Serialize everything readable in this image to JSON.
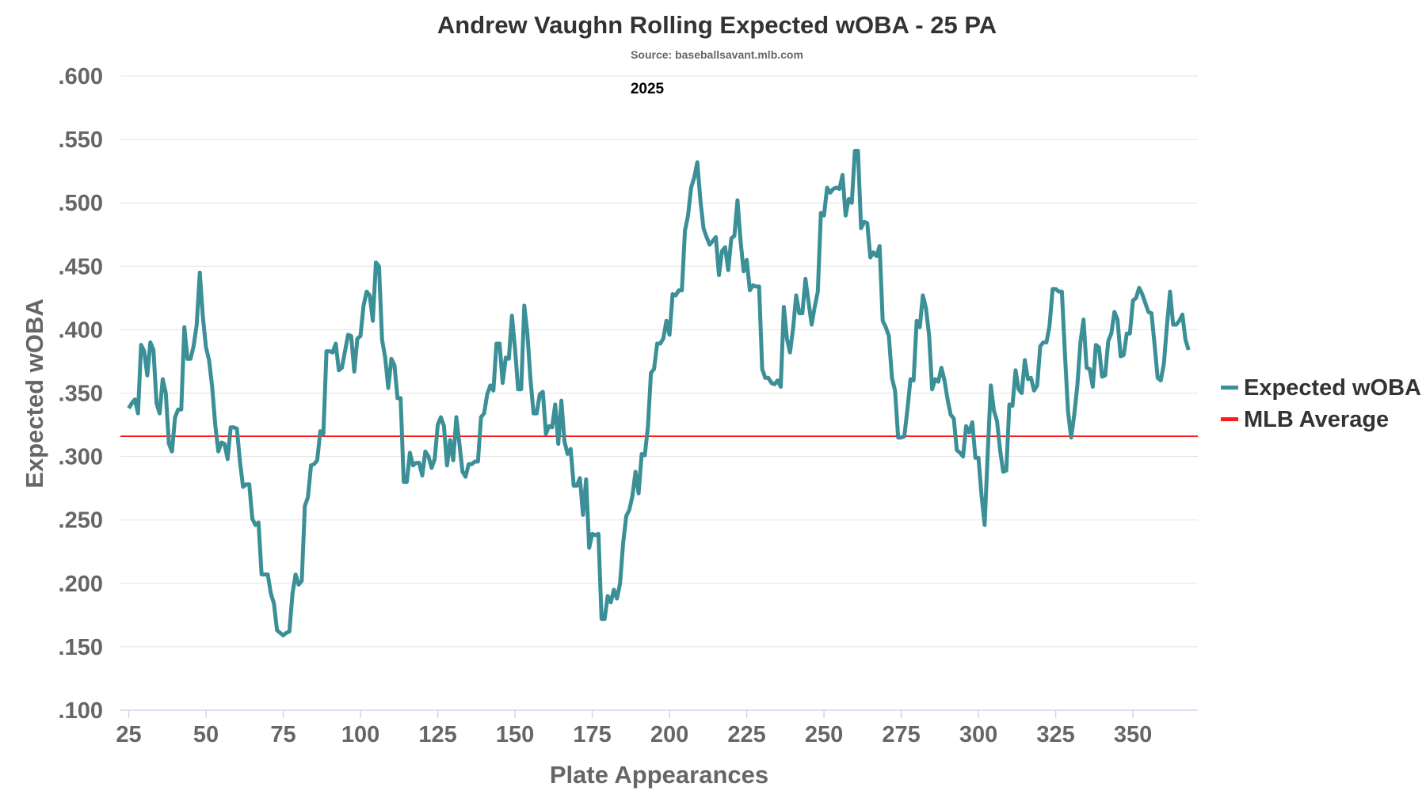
{
  "chart_data": {
    "type": "line",
    "title": "Andrew Vaughn Rolling Expected wOBA - 25 PA",
    "subtitle": "Source: baseballsavant.mlb.com",
    "annotation": "2025",
    "xlabel": "Plate Appearances",
    "ylabel": "Expected wOBA",
    "xlim": [
      22.3,
      371
    ],
    "ylim": [
      0.1,
      0.6
    ],
    "x_ticks": [
      "25",
      "50",
      "75",
      "100",
      "125",
      "150",
      "175",
      "200",
      "225",
      "250",
      "275",
      "300",
      "325",
      "350"
    ],
    "y_ticks": [
      ".100",
      ".150",
      ".200",
      ".250",
      ".300",
      ".350",
      ".400",
      ".450",
      ".500",
      ".550",
      ".600"
    ],
    "grid": true,
    "legend_position": "right",
    "colors": {
      "series": "#3b8f97",
      "average": "#ff1a1a"
    },
    "series": [
      {
        "name": "Expected wOBA",
        "x_start": 25,
        "values": [
          0.338,
          0.342,
          0.345,
          0.334,
          0.388,
          0.383,
          0.364,
          0.39,
          0.384,
          0.342,
          0.334,
          0.361,
          0.35,
          0.31,
          0.304,
          0.331,
          0.337,
          0.337,
          0.402,
          0.377,
          0.377,
          0.387,
          0.404,
          0.445,
          0.41,
          0.386,
          0.376,
          0.355,
          0.325,
          0.304,
          0.311,
          0.31,
          0.298,
          0.323,
          0.323,
          0.322,
          0.296,
          0.276,
          0.278,
          0.278,
          0.251,
          0.246,
          0.248,
          0.207,
          0.207,
          0.207,
          0.192,
          0.184,
          0.163,
          0.161,
          0.159,
          0.161,
          0.162,
          0.192,
          0.207,
          0.199,
          0.202,
          0.261,
          0.268,
          0.293,
          0.294,
          0.297,
          0.32,
          0.318,
          0.383,
          0.383,
          0.382,
          0.389,
          0.368,
          0.37,
          0.383,
          0.396,
          0.395,
          0.367,
          0.393,
          0.395,
          0.419,
          0.43,
          0.427,
          0.407,
          0.453,
          0.45,
          0.392,
          0.378,
          0.354,
          0.377,
          0.372,
          0.346,
          0.346,
          0.28,
          0.28,
          0.303,
          0.293,
          0.295,
          0.295,
          0.285,
          0.304,
          0.3,
          0.291,
          0.298,
          0.325,
          0.331,
          0.324,
          0.293,
          0.313,
          0.297,
          0.331,
          0.31,
          0.288,
          0.284,
          0.294,
          0.294,
          0.296,
          0.296,
          0.331,
          0.334,
          0.349,
          0.356,
          0.352,
          0.389,
          0.389,
          0.358,
          0.378,
          0.377,
          0.411,
          0.385,
          0.353,
          0.353,
          0.419,
          0.397,
          0.361,
          0.334,
          0.334,
          0.349,
          0.351,
          0.318,
          0.324,
          0.323,
          0.341,
          0.31,
          0.344,
          0.312,
          0.302,
          0.306,
          0.277,
          0.277,
          0.283,
          0.254,
          0.282,
          0.228,
          0.239,
          0.238,
          0.239,
          0.172,
          0.172,
          0.19,
          0.185,
          0.195,
          0.188,
          0.2,
          0.232,
          0.253,
          0.258,
          0.269,
          0.288,
          0.271,
          0.302,
          0.301,
          0.323,
          0.366,
          0.369,
          0.389,
          0.389,
          0.393,
          0.407,
          0.396,
          0.428,
          0.427,
          0.431,
          0.431,
          0.478,
          0.49,
          0.512,
          0.52,
          0.532,
          0.502,
          0.48,
          0.473,
          0.467,
          0.47,
          0.473,
          0.443,
          0.462,
          0.465,
          0.447,
          0.472,
          0.474,
          0.502,
          0.47,
          0.446,
          0.455,
          0.431,
          0.435,
          0.434,
          0.434,
          0.369,
          0.362,
          0.362,
          0.358,
          0.357,
          0.36,
          0.355,
          0.418,
          0.393,
          0.382,
          0.401,
          0.427,
          0.413,
          0.413,
          0.44,
          0.422,
          0.404,
          0.418,
          0.43,
          0.492,
          0.49,
          0.512,
          0.508,
          0.511,
          0.512,
          0.511,
          0.522,
          0.49,
          0.503,
          0.5,
          0.541,
          0.541,
          0.48,
          0.485,
          0.484,
          0.457,
          0.461,
          0.458,
          0.466,
          0.407,
          0.402,
          0.395,
          0.362,
          0.352,
          0.315,
          0.315,
          0.316,
          0.337,
          0.361,
          0.36,
          0.407,
          0.402,
          0.427,
          0.417,
          0.396,
          0.353,
          0.361,
          0.359,
          0.37,
          0.36,
          0.345,
          0.333,
          0.33,
          0.305,
          0.303,
          0.3,
          0.324,
          0.319,
          0.327,
          0.299,
          0.299,
          0.269,
          0.246,
          0.303,
          0.356,
          0.336,
          0.328,
          0.305,
          0.288,
          0.289,
          0.341,
          0.34,
          0.368,
          0.353,
          0.35,
          0.376,
          0.361,
          0.362,
          0.352,
          0.356,
          0.387,
          0.39,
          0.39,
          0.403,
          0.432,
          0.432,
          0.43,
          0.43,
          0.38,
          0.335,
          0.315,
          0.333,
          0.356,
          0.39,
          0.408,
          0.37,
          0.369,
          0.355,
          0.388,
          0.386,
          0.363,
          0.364,
          0.391,
          0.397,
          0.414,
          0.408,
          0.379,
          0.38,
          0.397,
          0.397,
          0.423,
          0.425,
          0.433,
          0.428,
          0.421,
          0.414,
          0.413,
          0.388,
          0.362,
          0.36,
          0.373,
          0.403,
          0.43,
          0.404,
          0.404,
          0.407,
          0.412,
          0.392,
          0.384
        ]
      },
      {
        "name": "MLB Average",
        "value": 0.316
      }
    ]
  }
}
